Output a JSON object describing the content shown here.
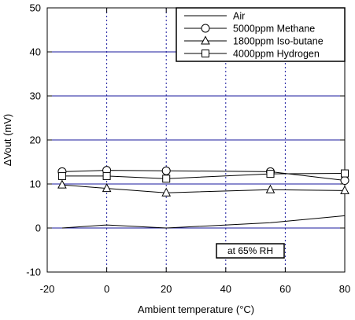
{
  "chart_data": {
    "type": "line",
    "xlabel": "Ambient temperature (°C)",
    "ylabel": "ΔVout (mV)",
    "xlim": [
      -20,
      80
    ],
    "ylim": [
      -10,
      50
    ],
    "xticks": [
      -20,
      0,
      20,
      40,
      60,
      80
    ],
    "yticks": [
      -10,
      0,
      10,
      20,
      30,
      40,
      50
    ],
    "xtick_labels": [
      "-20",
      "0",
      "20",
      "40",
      "60",
      "80"
    ],
    "ytick_labels": [
      "-10",
      "0",
      "10",
      "20",
      "30",
      "40",
      "50"
    ],
    "grid": true,
    "legend_position": "top-right",
    "annotation": "at 65% RH",
    "colors": {
      "frame": "#000000",
      "grid_x": "#1a1a9e",
      "grid_y": "#1a1a9e",
      "series": "#000000"
    },
    "series": [
      {
        "name": "Air",
        "marker": "none",
        "x": [
          -15,
          0,
          20,
          55,
          80
        ],
        "y": [
          0,
          0.7,
          0,
          1.2,
          2.8
        ]
      },
      {
        "name": "5000ppm Methane",
        "marker": "circle",
        "x": [
          -15,
          0,
          20,
          55,
          80
        ],
        "y": [
          12.8,
          13.1,
          13.0,
          12.8,
          10.8
        ]
      },
      {
        "name": "1800ppm Iso-butane",
        "marker": "triangle",
        "x": [
          -15,
          0,
          20,
          55,
          80
        ],
        "y": [
          9.8,
          9.0,
          8.0,
          8.7,
          8.5
        ]
      },
      {
        "name": "4000ppm Hydrogen",
        "marker": "square",
        "x": [
          -15,
          0,
          20,
          55,
          80
        ],
        "y": [
          11.8,
          11.8,
          11.2,
          12.3,
          12.4
        ]
      }
    ]
  }
}
